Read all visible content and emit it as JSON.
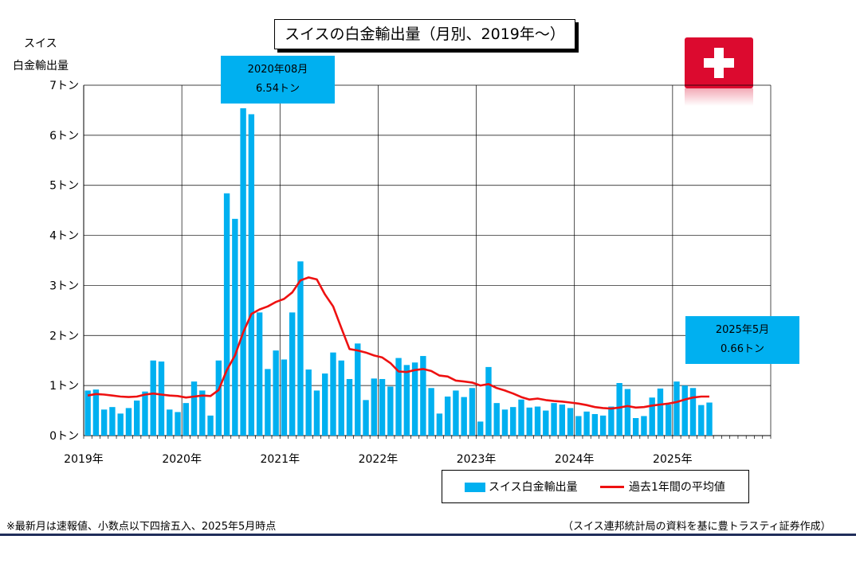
{
  "title": "スイスの白金輸出量（月別、2019年～）",
  "y_axis_title_line1": "スイス",
  "y_axis_title_line2": "白金輸出量",
  "callout_peak": {
    "line1": "2020年08月",
    "line2": "6.54トン"
  },
  "callout_latest": {
    "line1": "2025年5月",
    "line2": "0.66トン"
  },
  "legend": {
    "bar_label": "スイス白金輸出量",
    "line_label": "過去1年間の平均値"
  },
  "note_left": "※最新月は速報値、小数点以下四捨五入、2025年5月時点",
  "note_right": "（スイス連邦統計局の資料を基に豊トラスティ証券作成）",
  "colors": {
    "bar": "#00b0f0",
    "line": "#ee1111",
    "flag": "#dc0a2f",
    "rule": "#1f2d5a"
  },
  "icons": {
    "flag": "swiss-flag-icon"
  },
  "chart_data": {
    "type": "bar",
    "x_start": "2019-01",
    "x_end": "2025-12",
    "xlabel": "",
    "ylabel": "スイス 白金輸出量",
    "ylim": [
      0,
      7
    ],
    "y_ticks": [
      0,
      1,
      2,
      3,
      4,
      5,
      6,
      7
    ],
    "y_tick_labels": [
      "0トン",
      "1トン",
      "2トン",
      "3トン",
      "4トン",
      "5トン",
      "6トン",
      "7トン"
    ],
    "x_tick_labels": [
      "2019年",
      "2020年",
      "2021年",
      "2022年",
      "2023年",
      "2024年",
      "2025年"
    ],
    "grid": true,
    "legend_position": "bottom-right",
    "series": [
      {
        "name": "スイス白金輸出量",
        "type": "bar",
        "values": [
          0.9,
          0.92,
          0.52,
          0.57,
          0.44,
          0.55,
          0.7,
          0.88,
          1.5,
          1.48,
          0.52,
          0.47,
          0.65,
          1.08,
          0.9,
          0.4,
          1.5,
          4.84,
          4.33,
          6.54,
          6.42,
          2.46,
          1.33,
          1.7,
          1.52,
          2.46,
          3.48,
          1.32,
          0.9,
          1.24,
          1.66,
          1.5,
          1.13,
          1.84,
          0.71,
          1.14,
          1.13,
          0.98,
          1.55,
          1.41,
          1.46,
          1.59,
          0.95,
          0.44,
          0.78,
          0.9,
          0.77,
          0.95,
          0.28,
          1.37,
          0.65,
          0.52,
          0.57,
          0.72,
          0.56,
          0.58,
          0.5,
          0.65,
          0.62,
          0.55,
          0.39,
          0.48,
          0.43,
          0.4,
          0.58,
          1.05,
          0.93,
          0.35,
          0.39,
          0.76,
          0.94,
          0.62,
          1.08,
          1.0,
          0.95,
          0.61,
          0.66
        ]
      },
      {
        "name": "過去1年間の平均値",
        "type": "line",
        "values": [
          0.8,
          0.83,
          0.82,
          0.8,
          0.78,
          0.77,
          0.78,
          0.82,
          0.84,
          0.82,
          0.8,
          0.79,
          0.76,
          0.78,
          0.8,
          0.79,
          0.91,
          1.31,
          1.6,
          2.06,
          2.43,
          2.52,
          2.58,
          2.67,
          2.73,
          2.86,
          3.1,
          3.16,
          3.12,
          2.82,
          2.58,
          2.15,
          1.73,
          1.7,
          1.66,
          1.6,
          1.56,
          1.45,
          1.28,
          1.27,
          1.31,
          1.33,
          1.29,
          1.2,
          1.18,
          1.1,
          1.08,
          1.06,
          1.0,
          1.03,
          0.95,
          0.9,
          0.84,
          0.77,
          0.72,
          0.74,
          0.71,
          0.69,
          0.68,
          0.66,
          0.64,
          0.61,
          0.57,
          0.55,
          0.54,
          0.56,
          0.59,
          0.56,
          0.57,
          0.6,
          0.62,
          0.64,
          0.67,
          0.72,
          0.76,
          0.78,
          0.78
        ]
      }
    ]
  }
}
